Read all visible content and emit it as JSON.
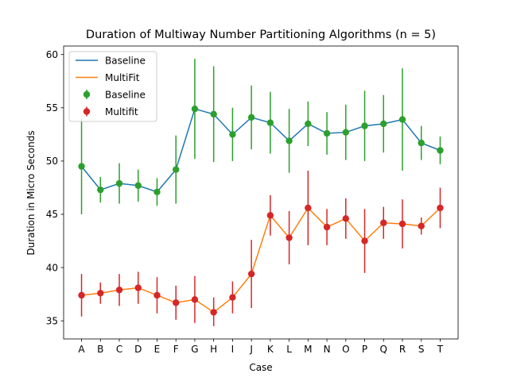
{
  "chart_data": {
    "type": "line",
    "title": "Duration of Multiway Number Partitioning Algorithms (n = 5)",
    "xlabel": "Case",
    "ylabel": "Duration in Micro Seconds",
    "ylim": [
      33.3,
      60.8
    ],
    "yticks": [
      35,
      40,
      45,
      50,
      55,
      60
    ],
    "grid": false,
    "legend_position": "top-left",
    "categories": [
      "A",
      "B",
      "C",
      "D",
      "E",
      "F",
      "G",
      "H",
      "I",
      "J",
      "K",
      "L",
      "M",
      "N",
      "O",
      "P",
      "Q",
      "R",
      "S",
      "T"
    ],
    "series": [
      {
        "name": "Baseline",
        "line_color": "#1f77b4",
        "marker_color": "#2ca02c",
        "values": [
          49.5,
          47.3,
          47.9,
          47.7,
          47.1,
          49.2,
          54.9,
          54.4,
          52.5,
          54.1,
          53.6,
          51.9,
          53.5,
          52.6,
          52.7,
          53.3,
          53.5,
          53.9,
          51.7,
          51.0
        ],
        "lower": [
          45.0,
          46.1,
          46.0,
          46.2,
          45.8,
          46.0,
          50.2,
          49.9,
          50.0,
          51.1,
          50.7,
          48.9,
          51.4,
          50.6,
          50.1,
          50.0,
          50.8,
          49.1,
          50.1,
          49.7
        ],
        "upper": [
          54.0,
          48.5,
          49.8,
          49.2,
          48.4,
          52.4,
          59.6,
          58.9,
          55.0,
          57.1,
          56.5,
          54.9,
          55.6,
          54.6,
          55.3,
          56.6,
          56.2,
          58.7,
          53.3,
          52.3
        ]
      },
      {
        "name": "MultiFit",
        "line_color": "#ff7f0e",
        "marker_color": "#d62728",
        "values": [
          37.4,
          37.6,
          37.9,
          38.1,
          37.4,
          36.7,
          37.0,
          35.8,
          37.2,
          39.4,
          44.9,
          42.8,
          45.6,
          43.8,
          44.6,
          42.5,
          44.2,
          44.1,
          43.9,
          45.6
        ],
        "lower": [
          35.4,
          36.6,
          36.4,
          36.6,
          35.7,
          35.1,
          34.8,
          34.5,
          35.7,
          36.2,
          43.0,
          40.3,
          42.1,
          42.1,
          42.7,
          39.5,
          42.7,
          41.8,
          43.1,
          43.7
        ],
        "upper": [
          39.4,
          38.6,
          39.4,
          39.6,
          39.1,
          38.3,
          39.2,
          37.2,
          38.7,
          42.6,
          46.8,
          45.3,
          49.1,
          45.5,
          46.5,
          45.5,
          45.7,
          46.4,
          44.7,
          47.5
        ]
      }
    ],
    "legend": {
      "entries": [
        {
          "label": "Baseline",
          "kind": "line",
          "color": "#1f77b4"
        },
        {
          "label": "MultiFit",
          "kind": "line",
          "color": "#ff7f0e"
        },
        {
          "label": "Baseline",
          "kind": "errorbar",
          "color": "#2ca02c"
        },
        {
          "label": "Multifit",
          "kind": "errorbar",
          "color": "#d62728"
        }
      ]
    }
  }
}
